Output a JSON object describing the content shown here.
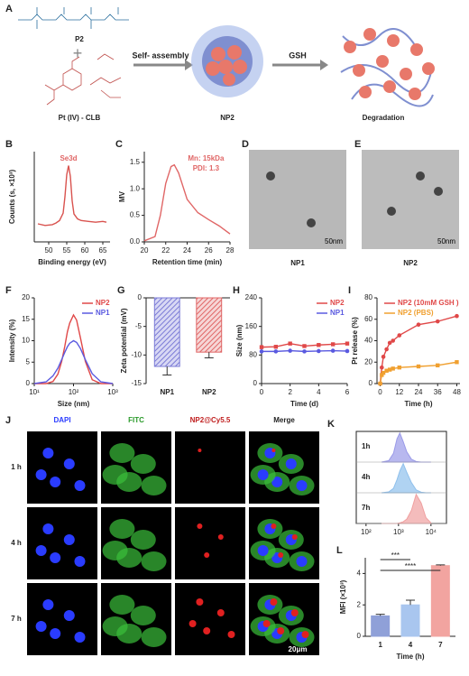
{
  "panels": {
    "A": {
      "label": "A",
      "p2": "P2",
      "pt": "Pt (IV) - CLB",
      "step1": "Self- assembly",
      "np2": "NP2",
      "step2": "GSH",
      "result": "Degradation"
    },
    "D": {
      "label": "D",
      "caption": "NP1",
      "scale": "50nm"
    },
    "E": {
      "label": "E",
      "caption": "NP2",
      "scale": "50nm"
    },
    "J": {
      "label": "J",
      "columns": [
        "DAPI",
        "FITC",
        "NP2@Cy5.5",
        "Merge"
      ],
      "rows": [
        "1 h",
        "4 h",
        "7 h"
      ],
      "scale": "20μm"
    }
  },
  "chart_data": [
    {
      "type": "line",
      "panel_label": "B",
      "xlabel": "Binding energy (eV)",
      "ylabel": "Counts (s, ×10³)",
      "annotations": [
        "Se3d"
      ],
      "x": [
        47,
        49,
        51,
        52,
        53,
        54,
        54.5,
        55,
        55.5,
        56,
        56.5,
        57,
        58,
        59,
        61,
        63,
        65,
        66
      ],
      "series": [
        {
          "color": "#d9534f",
          "values": [
            2.2,
            2.0,
            2.1,
            2.3,
            2.6,
            3.5,
            5.5,
            8.2,
            9.3,
            8.0,
            5.0,
            3.4,
            2.8,
            2.6,
            2.5,
            2.4,
            2.5,
            2.4
          ]
        }
      ],
      "xlim": [
        46,
        67
      ],
      "ylim": [
        0,
        11
      ],
      "xticks": [
        50,
        55,
        60,
        65
      ]
    },
    {
      "type": "line",
      "panel_label": "C",
      "xlabel": "Retention time (min)",
      "ylabel": "MV",
      "annotations": [
        "Mn: 15kDa",
        "PDI: 1.3"
      ],
      "x": [
        20,
        21,
        21.5,
        22,
        22.5,
        22.8,
        23.2,
        24,
        25,
        26,
        27,
        28
      ],
      "series": [
        {
          "color": "#e06666",
          "values": [
            0.02,
            0.1,
            0.5,
            1.1,
            1.42,
            1.45,
            1.3,
            0.8,
            0.55,
            0.42,
            0.3,
            0.15
          ]
        }
      ],
      "xlim": [
        20,
        28
      ],
      "ylim": [
        0,
        1.7
      ],
      "xticks": [
        20,
        22,
        24,
        26,
        28
      ],
      "yticks": [
        {
          "value": 0,
          "label": "0.0"
        },
        0.5,
        {
          "value": 1,
          "label": "1.0"
        },
        1.5
      ]
    },
    {
      "type": "line",
      "panel_label": "F",
      "xlabel": "Size (nm)",
      "ylabel": "Intensity (%)",
      "xlog": true,
      "legend": "upper right",
      "x": [
        10,
        20,
        30,
        40,
        50,
        60,
        70,
        80,
        100,
        120,
        150,
        200,
        300,
        500,
        1000
      ],
      "series": [
        {
          "name": "NP2",
          "color": "#e04848",
          "values": [
            0,
            0,
            0.5,
            2.2,
            5.2,
            8.7,
            12.1,
            14.1,
            16,
            14.8,
            10.7,
            5.2,
            0.9,
            0,
            0
          ]
        },
        {
          "name": "NP1",
          "color": "#5a5ae0",
          "values": [
            0,
            0.4,
            1.8,
            3.6,
            5.6,
            7.3,
            8.6,
            9.4,
            10,
            9.6,
            8.2,
            5.6,
            2.3,
            0.4,
            0
          ]
        }
      ],
      "xlim": [
        10,
        1000
      ],
      "ylim": [
        0,
        20
      ],
      "yticks": [
        0,
        5,
        10,
        15,
        20
      ],
      "xticks": [
        {
          "value": 10,
          "label": "10¹"
        },
        {
          "value": 100,
          "label": "10²"
        },
        {
          "value": 1000,
          "label": "10³"
        }
      ]
    },
    {
      "type": "bar",
      "panel_label": "G",
      "ylabel": "Zeta potential (mV)",
      "categories": [
        "NP1",
        "NP2"
      ],
      "values": [
        -12,
        -9.5
      ],
      "errors": [
        1.5,
        1
      ],
      "colors": [
        "#7b7bd6",
        "#e06666"
      ],
      "ylim": [
        -15,
        0
      ],
      "yticks": [
        0,
        -5,
        -10,
        -15
      ]
    },
    {
      "type": "line",
      "panel_label": "H",
      "xlabel": "Time (d)",
      "ylabel": "Size (nm)",
      "legend": "upper right",
      "x": [
        0,
        1,
        2,
        3,
        4,
        5,
        6
      ],
      "series": [
        {
          "name": "NP2",
          "color": "#e04848",
          "marker": "square",
          "values": [
            102,
            103,
            112,
            105,
            108,
            110,
            112
          ]
        },
        {
          "name": "NP1",
          "color": "#5a5ae0",
          "marker": "circle",
          "values": [
            90,
            90,
            92,
            90,
            91,
            92,
            91
          ]
        }
      ],
      "xlim": [
        0,
        6
      ],
      "ylim": [
        0,
        240
      ],
      "xticks": [
        0,
        2,
        4,
        6
      ],
      "yticks": [
        0,
        80,
        160,
        240
      ]
    },
    {
      "type": "line",
      "panel_label": "I",
      "xlabel": "Time (h)",
      "ylabel": "Pt release (%)",
      "legend": "upper left",
      "x": [
        0,
        1,
        2,
        4,
        6,
        8,
        12,
        24,
        36,
        48
      ],
      "series": [
        {
          "name": "NP2  (10mM GSH )",
          "color": "#e04848",
          "marker": "circle",
          "values": [
            0,
            15,
            25,
            32,
            38,
            40,
            45,
            55,
            58,
            63
          ]
        },
        {
          "name": "NP2  (PBS)",
          "color": "#f0a030",
          "marker": "square",
          "values": [
            0,
            8,
            10,
            12,
            13,
            14,
            15,
            16,
            17,
            20
          ]
        }
      ],
      "xlim": [
        -2,
        50
      ],
      "ylim": [
        0,
        80
      ],
      "xticks": [
        0,
        12,
        24,
        36,
        48
      ],
      "yticks": [
        0,
        20,
        40,
        60,
        80
      ]
    },
    {
      "type": "ridgeline",
      "panel_label": "K",
      "xlog": true,
      "x": [
        300,
        500,
        700,
        900,
        1100,
        1400,
        1800,
        2500,
        3500,
        5000,
        7000,
        10000
      ],
      "series": [
        {
          "name": "1h",
          "color": "#9a9ae8",
          "values": [
            0,
            0.05,
            0.3,
            0.8,
            1,
            0.7,
            0.35,
            0.1,
            0.02,
            0,
            0,
            0
          ]
        },
        {
          "name": "4h",
          "color": "#8fc0ec",
          "values": [
            0,
            0.03,
            0.15,
            0.45,
            0.75,
            1,
            0.7,
            0.35,
            0.1,
            0.02,
            0,
            0
          ]
        },
        {
          "name": "7h",
          "color": "#f0a0a0",
          "values": [
            0,
            0,
            0,
            0,
            0.02,
            0.06,
            0.15,
            0.45,
            1,
            0.7,
            0.2,
            0.02
          ]
        }
      ],
      "xlim": [
        50,
        30000
      ],
      "ylim": [
        0,
        1
      ],
      "xticks": [
        {
          "value": 100,
          "label": "10²"
        },
        {
          "value": 1000,
          "label": "10³"
        },
        {
          "value": 10000,
          "label": "10⁴"
        }
      ]
    },
    {
      "type": "bar",
      "panel_label": "L",
      "xlabel": "Time (h)",
      "ylabel": "MFI (×10³)",
      "annotations": [
        "***",
        "****"
      ],
      "categories": [
        "1",
        "4",
        "7"
      ],
      "values": [
        1.3,
        2.0,
        4.5
      ],
      "errors": [
        0.1,
        0.3,
        0.05
      ],
      "colors": [
        "#8fa0d8",
        "#a9c6ef",
        "#f2a4a0"
      ],
      "ylim": [
        0,
        5
      ],
      "yticks": [
        0,
        2,
        4
      ]
    }
  ]
}
